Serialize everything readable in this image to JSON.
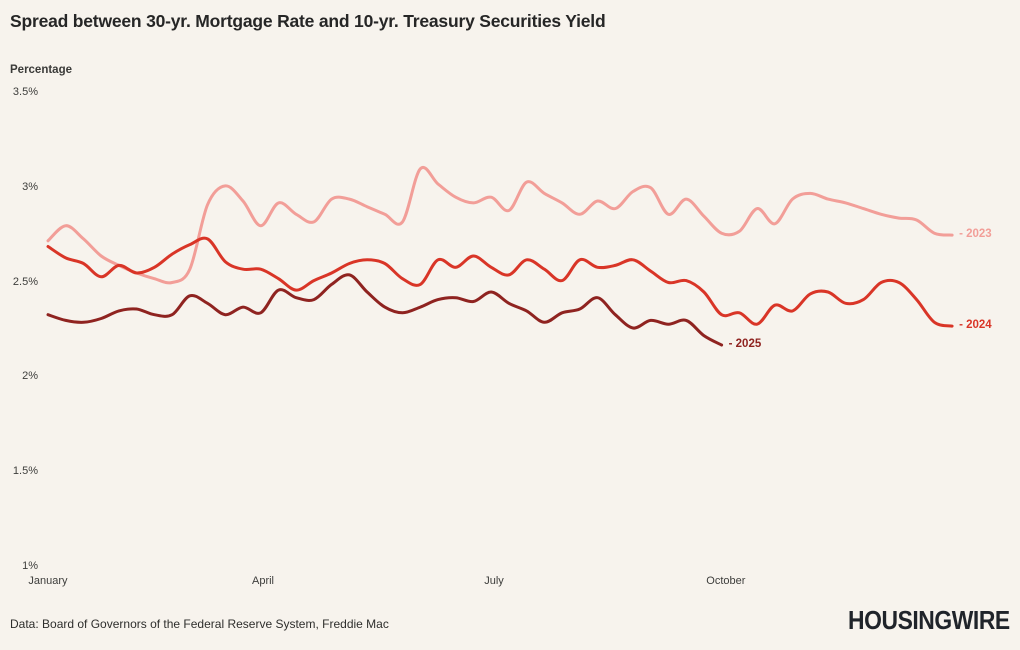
{
  "title": "Spread between 30-yr. Mortgage Rate and 10-yr. Treasury Securities Yield",
  "y_axis_label": "Percentage",
  "source": "Data: Board of Governors of the Federal Reserve System, Freddie Mac",
  "logo": "HOUSINGWIRE",
  "colors": {
    "background": "#f7f3ed",
    "series_2023": "#f29e98",
    "series_2024": "#d93527",
    "series_2025": "#8f2320",
    "title_text": "#262626",
    "axis_text": "#3d3d3b"
  },
  "chart_data": {
    "type": "line",
    "title": "Spread between 30-yr. Mortgage Rate and 10-yr. Treasury Securities Yield",
    "xlabel": "",
    "ylabel": "Percentage",
    "ylim": [
      1,
      3.5
    ],
    "grid": false,
    "legend_position": "line-end",
    "x_unit": "week-of-year",
    "y_ticks": [
      "3.5%",
      "3%",
      "2.5%",
      "2%",
      "1.5%",
      "1%"
    ],
    "y_tick_values": [
      3.5,
      3,
      2.5,
      2,
      1.5,
      1
    ],
    "x_ticks": [
      {
        "label": "January",
        "week": 0
      },
      {
        "label": "April",
        "week": 12.13
      },
      {
        "label": "July",
        "week": 25.16
      },
      {
        "label": "October",
        "week": 38.24
      }
    ],
    "series": [
      {
        "name": "2023",
        "label": "- 2023",
        "color": "#f29e98",
        "values": [
          2.72,
          2.8,
          2.73,
          2.64,
          2.59,
          2.55,
          2.52,
          2.5,
          2.57,
          2.91,
          3.01,
          2.93,
          2.8,
          2.92,
          2.86,
          2.82,
          2.94,
          2.94,
          2.9,
          2.86,
          2.82,
          3.1,
          3.02,
          2.95,
          2.92,
          2.95,
          2.88,
          3.03,
          2.97,
          2.92,
          2.86,
          2.93,
          2.89,
          2.98,
          3.0,
          2.86,
          2.94,
          2.85,
          2.76,
          2.77,
          2.89,
          2.81,
          2.94,
          2.97,
          2.94,
          2.92,
          2.89,
          2.86,
          2.84,
          2.83,
          2.76,
          2.75
        ]
      },
      {
        "name": "2024",
        "label": "- 2024",
        "color": "#d93527",
        "values": [
          2.69,
          2.63,
          2.6,
          2.53,
          2.59,
          2.55,
          2.58,
          2.65,
          2.7,
          2.73,
          2.61,
          2.57,
          2.57,
          2.52,
          2.46,
          2.51,
          2.55,
          2.6,
          2.62,
          2.6,
          2.52,
          2.49,
          2.62,
          2.58,
          2.64,
          2.58,
          2.54,
          2.62,
          2.57,
          2.51,
          2.62,
          2.58,
          2.59,
          2.62,
          2.56,
          2.5,
          2.51,
          2.45,
          2.33,
          2.34,
          2.28,
          2.38,
          2.35,
          2.44,
          2.45,
          2.39,
          2.41,
          2.5,
          2.5,
          2.41,
          2.29,
          2.27
        ]
      },
      {
        "name": "2025",
        "label": "- 2025",
        "color": "#8f2320",
        "values": [
          2.33,
          2.3,
          2.29,
          2.31,
          2.35,
          2.36,
          2.33,
          2.33,
          2.43,
          2.39,
          2.33,
          2.37,
          2.34,
          2.46,
          2.42,
          2.41,
          2.49,
          2.54,
          2.45,
          2.37,
          2.34,
          2.37,
          2.41,
          2.42,
          2.4,
          2.45,
          2.39,
          2.35,
          2.29,
          2.34,
          2.36,
          2.42,
          2.33,
          2.26,
          2.3,
          2.28,
          2.3,
          2.22,
          2.17
        ]
      }
    ]
  }
}
